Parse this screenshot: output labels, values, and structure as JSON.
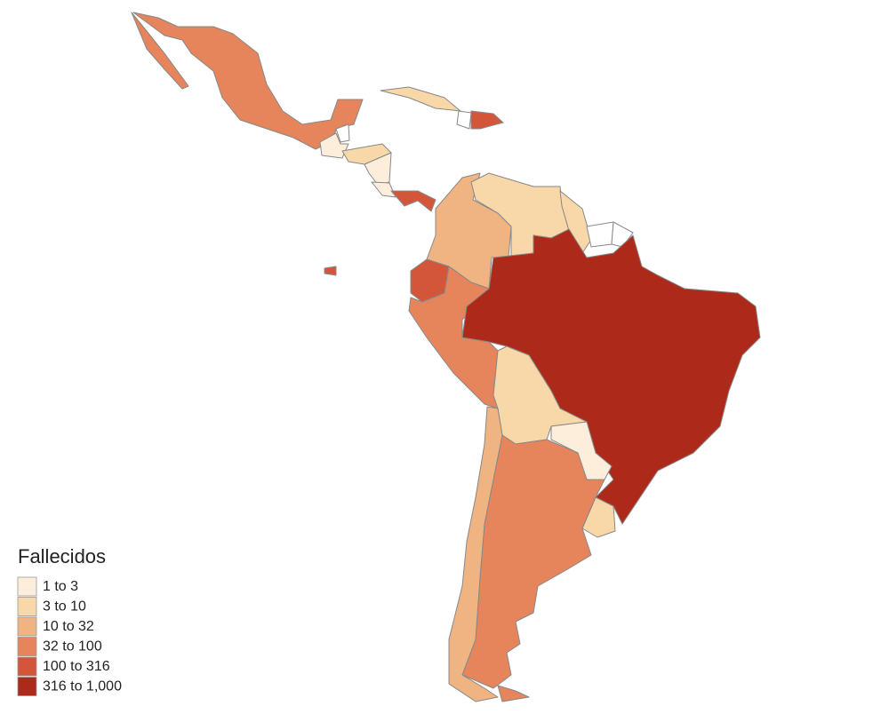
{
  "legend": {
    "title": "Fallecidos",
    "items": [
      {
        "label": "1 to 3",
        "color": "#fdeedc"
      },
      {
        "label": "3 to 10",
        "color": "#f8d8a8"
      },
      {
        "label": "10 to 32",
        "color": "#f0b483"
      },
      {
        "label": "32 to 100",
        "color": "#e6845c"
      },
      {
        "label": "100 to 316",
        "color": "#d4563a"
      },
      {
        "label": "316 to 1,000",
        "color": "#ad2a1a"
      }
    ],
    "no_data_color": "#ffffff"
  }
}
